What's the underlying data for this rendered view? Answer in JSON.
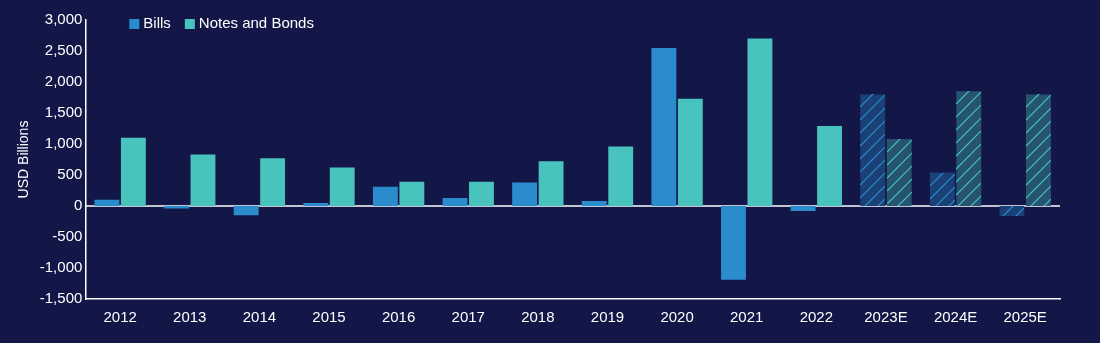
{
  "chart_data": {
    "type": "bar",
    "ylabel": "USD Billions",
    "categories": [
      "2012",
      "2013",
      "2014",
      "2015",
      "2016",
      "2017",
      "2018",
      "2019",
      "2020",
      "2021",
      "2022",
      "2023E",
      "2024E",
      "2025E"
    ],
    "series": [
      {
        "name": "Bills",
        "color": "#2a8ccc",
        "colors": [
          "#2a8ccc",
          "#2a8ccc",
          "#2a8ccc",
          "#2a8ccc",
          "#2a8ccc",
          "#2a8ccc",
          "#2a8ccc",
          "#2a8ccc",
          "#2a8ccc",
          "#2a8ccc",
          "#2a8ccc",
          "#1a4076",
          "#1a4076",
          "#1a4076"
        ],
        "values": [
          100,
          -40,
          -150,
          50,
          310,
          130,
          380,
          80,
          2550,
          -1190,
          -80,
          1800,
          540,
          -160
        ]
      },
      {
        "name": "Notes and Bonds",
        "color": "#48c3bd",
        "colors": [
          "#48c3bd",
          "#48c3bd",
          "#48c3bd",
          "#48c3bd",
          "#48c3bd",
          "#48c3bd",
          "#48c3bd",
          "#48c3bd",
          "#48c3bd",
          "#48c3bd",
          "#48c3bd",
          "#255370",
          "#255370",
          "#255370"
        ],
        "values": [
          1100,
          830,
          770,
          620,
          390,
          390,
          720,
          960,
          1730,
          2700,
          1290,
          1080,
          1850,
          1800
        ]
      }
    ],
    "ylim": [
      -1500,
      3000
    ],
    "yticks": [
      {
        "value": -1500,
        "label": "-1,500"
      },
      {
        "value": -1000,
        "label": "-1,000"
      },
      {
        "value": -500,
        "label": "-500"
      },
      0,
      {
        "value": 500,
        "label": "500"
      },
      {
        "value": 1000,
        "label": "1,000"
      },
      {
        "value": 1500,
        "label": "1,500"
      },
      {
        "value": 2000,
        "label": "2,000"
      },
      {
        "value": 2500,
        "label": "2,500"
      },
      {
        "value": 3000,
        "label": "3,000"
      }
    ],
    "ref_lines": [
      {
        "axis": "y",
        "value": 0,
        "color": "#ffffff"
      }
    ],
    "legend": "top left",
    "grid": false
  }
}
